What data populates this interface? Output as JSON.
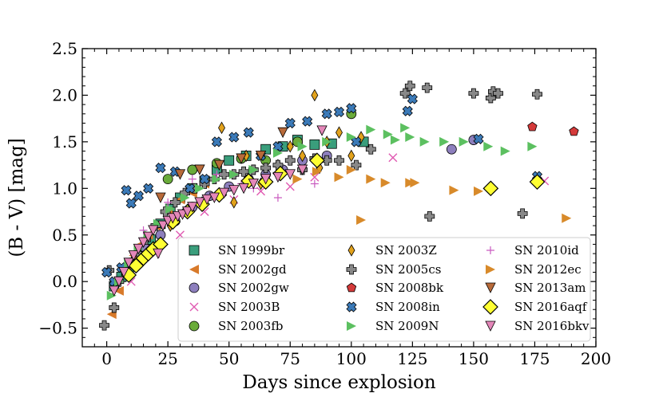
{
  "chart_data": {
    "type": "scatter",
    "title": "",
    "xlabel": "Days since explosion",
    "ylabel": "(B - V) [mag]",
    "xlim": [
      -10,
      200
    ],
    "ylim": [
      -0.7,
      2.5
    ],
    "xticks": [
      0,
      25,
      50,
      75,
      100,
      125,
      150,
      175,
      200
    ],
    "yticks": [
      -0.5,
      0.0,
      0.5,
      1.0,
      1.5,
      2.0,
      2.5
    ],
    "xtick_labels": [
      "0",
      "25",
      "50",
      "75",
      "100",
      "125",
      "150",
      "175",
      "200"
    ],
    "ytick_labels": [
      "−0.5",
      "0.0",
      "0.5",
      "1.0",
      "1.5",
      "2.0",
      "2.5"
    ],
    "legend_position": "lower-right",
    "series": [
      {
        "name": "SN 1999br",
        "color": "#3a9e7c",
        "marker": "square",
        "x": [
          3,
          6,
          9,
          12,
          15,
          18,
          22,
          26,
          30,
          35,
          40,
          45,
          50,
          57,
          65,
          72,
          78,
          85,
          92,
          105
        ],
        "y": [
          -0.05,
          0.05,
          0.15,
          0.25,
          0.35,
          0.45,
          0.62,
          0.78,
          0.9,
          1.0,
          1.08,
          1.2,
          1.3,
          1.35,
          1.42,
          1.45,
          1.52,
          1.47,
          1.48,
          1.5
        ]
      },
      {
        "name": "SN 2002gd",
        "color": "#d87a2a",
        "marker": "triangle-left",
        "x": [
          2,
          5,
          8,
          11,
          14,
          17,
          20,
          25,
          30,
          35,
          40
        ],
        "y": [
          -0.35,
          -0.1,
          0.1,
          0.28,
          0.4,
          0.5,
          0.6,
          0.75,
          0.88,
          0.95,
          1.05
        ]
      },
      {
        "name": "SN 2002gw",
        "color": "#8d7fbd",
        "marker": "circle",
        "x": [
          10,
          16,
          22,
          28,
          35,
          42,
          50,
          58,
          65,
          72,
          80,
          90,
          141,
          150
        ],
        "y": [
          0.2,
          0.35,
          0.5,
          0.65,
          0.8,
          0.92,
          1.02,
          1.1,
          1.15,
          1.2,
          1.3,
          1.35,
          1.42,
          1.52
        ]
      },
      {
        "name": "SN 2003B",
        "color": "#e05ab2",
        "marker": "x",
        "x": [
          10,
          20,
          30,
          40,
          52,
          63,
          75,
          85,
          117,
          179
        ],
        "y": [
          0.0,
          0.3,
          0.5,
          0.75,
          0.88,
          0.97,
          1.02,
          1.12,
          1.33,
          1.08
        ]
      },
      {
        "name": "SN 2003fb",
        "color": "#6aab3a",
        "marker": "circle",
        "x": [
          25,
          35,
          45,
          55,
          65,
          78,
          100
        ],
        "y": [
          1.1,
          1.2,
          1.27,
          1.32,
          1.3,
          1.5,
          1.8
        ]
      },
      {
        "name": "SN 2003Z",
        "color": "#e2a21c",
        "marker": "diamond",
        "x": [
          26,
          47,
          52,
          57,
          63,
          70,
          75,
          80,
          85,
          87,
          90,
          95,
          100,
          104
        ],
        "y": [
          0.6,
          1.65,
          0.85,
          1.35,
          1.05,
          1.25,
          1.45,
          1.35,
          2.0,
          1.22,
          1.5,
          1.6,
          1.35,
          1.55
        ]
      },
      {
        "name": "SN 2005cs",
        "color": "#888888",
        "marker": "plus",
        "x": [
          -1,
          1,
          3,
          5,
          8,
          10,
          13,
          16,
          20,
          24,
          28,
          32,
          36,
          40,
          44,
          48,
          52,
          56,
          60,
          65,
          70,
          75,
          80,
          85,
          90,
          95,
          102,
          108,
          122,
          124,
          132,
          131,
          150,
          157,
          158,
          160,
          170,
          176
        ],
        "y": [
          -0.47,
          0.12,
          -0.28,
          0.0,
          0.1,
          0.2,
          0.3,
          0.45,
          0.6,
          0.75,
          0.85,
          0.95,
          1.0,
          1.05,
          1.1,
          1.15,
          1.15,
          1.18,
          1.2,
          1.22,
          1.25,
          1.3,
          1.2,
          1.32,
          1.3,
          1.3,
          1.25,
          1.42,
          2.02,
          2.1,
          0.7,
          2.08,
          2.02,
          1.97,
          2.04,
          2.02,
          0.73,
          2.01
        ]
      },
      {
        "name": "SN 2008bk",
        "color": "#d43a3a",
        "marker": "pentagon",
        "x": [
          174,
          191
        ],
        "y": [
          1.66,
          1.61
        ]
      },
      {
        "name": "SN 2008in",
        "color": "#3b7ab8",
        "marker": "x-filled",
        "x": [
          0,
          3,
          6,
          8,
          10,
          13,
          17,
          22,
          28,
          34,
          40,
          45,
          52,
          58,
          63,
          70,
          75,
          82,
          90,
          95,
          100,
          102,
          123,
          125,
          152,
          176
        ],
        "y": [
          0.1,
          0.0,
          0.15,
          0.98,
          0.84,
          0.92,
          1.0,
          1.22,
          1.18,
          1.0,
          1.1,
          1.5,
          1.55,
          1.6,
          1.35,
          1.45,
          1.7,
          1.72,
          1.8,
          1.82,
          1.86,
          1.5,
          1.83,
          1.96,
          1.53,
          1.13
        ]
      },
      {
        "name": "SN 2009N",
        "color": "#5cc060",
        "marker": "triangle-right",
        "x": [
          2,
          5,
          9,
          13,
          17,
          21,
          26,
          32,
          38,
          45,
          52,
          60,
          70,
          80,
          90,
          100,
          108,
          115,
          118,
          122,
          124,
          130,
          138,
          146,
          156,
          163,
          174
        ],
        "y": [
          -0.15,
          0.0,
          0.2,
          0.35,
          0.5,
          0.62,
          0.78,
          0.9,
          1.0,
          1.1,
          1.15,
          1.2,
          1.38,
          1.45,
          1.5,
          1.55,
          1.63,
          1.58,
          1.52,
          1.65,
          1.55,
          1.5,
          1.5,
          1.5,
          1.45,
          1.4,
          1.45
        ]
      },
      {
        "name": "SN 2010id",
        "color": "#c95cc0",
        "marker": "plus-thin",
        "x": [
          15,
          25,
          35,
          45,
          55,
          60,
          70,
          85
        ],
        "y": [
          0.55,
          0.85,
          1.1,
          1.15,
          1.05,
          1.0,
          0.9,
          1.05
        ]
      },
      {
        "name": "SN 2012ec",
        "color": "#d88a2a",
        "marker": "triangle-right",
        "x": [
          78,
          86,
          95,
          100,
          104,
          108,
          114,
          124,
          126,
          142,
          152,
          188
        ],
        "y": [
          1.1,
          1.18,
          1.12,
          1.2,
          0.66,
          1.1,
          1.06,
          1.06,
          1.06,
          0.98,
          0.97,
          0.68
        ]
      },
      {
        "name": "SN 2013am",
        "color": "#b86a3a",
        "marker": "triangle-down",
        "x": [
          22,
          30,
          38,
          46,
          55,
          63,
          72
        ],
        "y": [
          0.9,
          1.15,
          1.2,
          1.25,
          1.32,
          1.35,
          1.6
        ]
      },
      {
        "name": "SN 2016aqf",
        "color": "#ffff33",
        "marker": "diamond-big",
        "x": [
          9,
          12,
          15,
          17,
          19,
          22,
          27,
          33,
          39,
          46,
          58,
          65,
          71,
          86,
          157,
          176
        ],
        "y": [
          0.07,
          0.17,
          0.25,
          0.3,
          0.35,
          0.4,
          0.64,
          0.75,
          0.83,
          0.93,
          1.08,
          1.07,
          1.16,
          1.3,
          1.0,
          1.07
        ]
      },
      {
        "name": "SN 2016bkv",
        "color": "#e487b9",
        "marker": "triangle-down",
        "x": [
          3,
          5,
          7,
          9,
          11,
          13,
          15,
          17,
          19,
          21,
          23,
          25,
          27,
          29,
          31,
          33,
          35,
          38,
          41,
          44,
          48,
          52,
          56,
          60,
          65,
          70,
          75,
          80,
          88
        ],
        "y": [
          -0.1,
          0.0,
          0.1,
          0.2,
          0.28,
          0.35,
          0.42,
          0.48,
          0.55,
          0.3,
          0.6,
          0.65,
          0.68,
          0.7,
          0.72,
          0.75,
          0.8,
          0.85,
          0.88,
          0.9,
          0.95,
          0.98,
          1.0,
          1.05,
          1.1,
          1.12,
          1.15,
          1.2,
          1.62
        ]
      }
    ]
  }
}
